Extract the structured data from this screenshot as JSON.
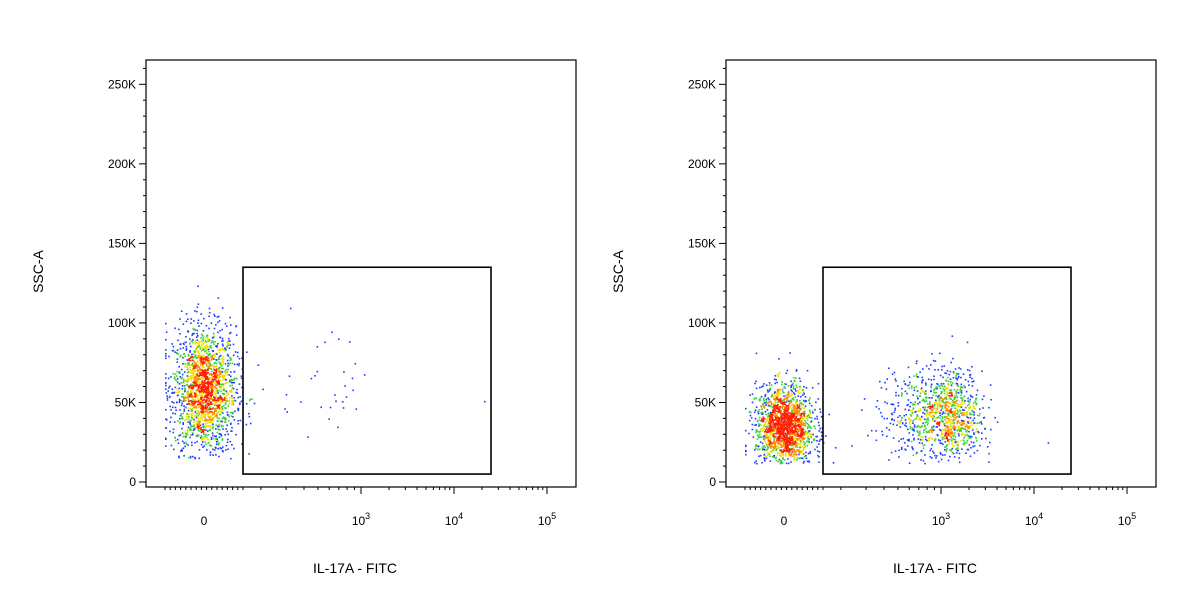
{
  "chart_data": [
    {
      "type": "scatter",
      "title": "",
      "xlabel": "IL-17A - FITC",
      "ylabel": "SSC-A",
      "x_scale": "biexponential",
      "x_ticks": [
        {
          "value": 0,
          "label": "0"
        },
        {
          "value": 1000,
          "label": "10",
          "sup": "3"
        },
        {
          "value": 10000,
          "label": "10",
          "sup": "4"
        },
        {
          "value": 100000,
          "label": "10",
          "sup": "5"
        }
      ],
      "ylim": [
        0,
        262144
      ],
      "y_ticks": [
        {
          "value": 0,
          "label": "0"
        },
        {
          "value": 50000,
          "label": "50K"
        },
        {
          "value": 100000,
          "label": "100K"
        },
        {
          "value": 150000,
          "label": "150K"
        },
        {
          "value": 200000,
          "label": "200K"
        },
        {
          "value": 250000,
          "label": "250K"
        }
      ],
      "gate": {
        "x_min": 150,
        "x_max": 25000,
        "y_min": 5000,
        "y_max": 135000
      },
      "colormap": "pseudocolor density (blue-green-yellow-red)",
      "populations": [
        {
          "x_center": 0,
          "x_spread": 60,
          "y_center": 58000,
          "y_spread": 20000,
          "y_min": 15000,
          "y_max": 130000,
          "count": 1900
        },
        {
          "x_center": 600,
          "x_spread": 450,
          "y_center": 55000,
          "y_spread": 25000,
          "y_min": 20000,
          "y_max": 130000,
          "count": 32
        }
      ],
      "notable_points": [
        {
          "x": 21000,
          "y": 51000
        }
      ]
    },
    {
      "type": "scatter",
      "title": "",
      "xlabel": "IL-17A - FITC",
      "ylabel": "SSC-A",
      "x_scale": "biexponential",
      "x_ticks": [
        {
          "value": 0,
          "label": "0"
        },
        {
          "value": 1000,
          "label": "10",
          "sup": "3"
        },
        {
          "value": 10000,
          "label": "10",
          "sup": "4"
        },
        {
          "value": 100000,
          "label": "10",
          "sup": "5"
        }
      ],
      "ylim": [
        0,
        262144
      ],
      "y_ticks": [
        {
          "value": 0,
          "label": "0"
        },
        {
          "value": 50000,
          "label": "50K"
        },
        {
          "value": 100000,
          "label": "100K"
        },
        {
          "value": 150000,
          "label": "150K"
        },
        {
          "value": 200000,
          "label": "200K"
        },
        {
          "value": 250000,
          "label": "250K"
        }
      ],
      "gate": {
        "x_min": 150,
        "x_max": 25000,
        "y_min": 5000,
        "y_max": 135000
      },
      "colormap": "pseudocolor density (blue-green-yellow-red)",
      "populations": [
        {
          "x_center": 0,
          "x_spread": 55,
          "y_center": 35000,
          "y_spread": 13000,
          "y_min": 12000,
          "y_max": 130000,
          "count": 1700
        },
        {
          "x_center": 1100,
          "x_spread": 900,
          "y_center": 42000,
          "y_spread": 14000,
          "y_min": 12000,
          "y_max": 128000,
          "count": 1150
        }
      ],
      "notable_points": [
        {
          "x": 14000,
          "y": 25000
        }
      ]
    }
  ]
}
